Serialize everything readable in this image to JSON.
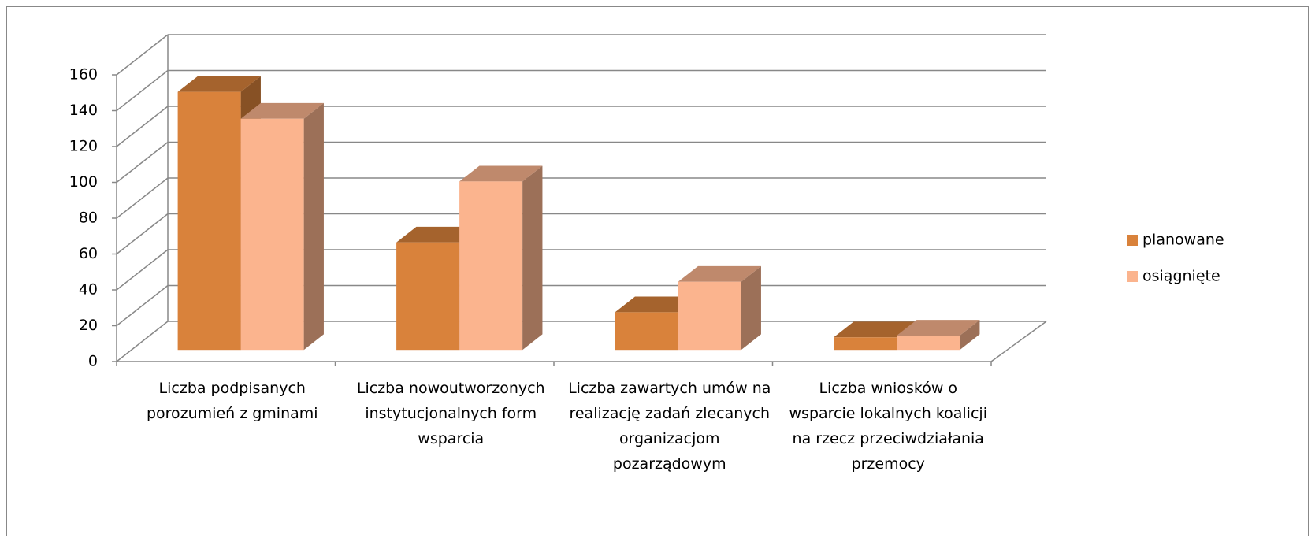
{
  "chart_data": {
    "type": "bar3d",
    "categories": [
      "Liczba podpisanych porozumień z gminami",
      "Liczba nowoutworzonych instytucjonalnych form wsparcia",
      "Liczba zawartych umów na realizację zadań zlecanych organizacjom pozarządowym",
      "Liczba wniosków o wsparcie lokalnych koalicji na rzecz przeciwdziałania przemocy"
    ],
    "series": [
      {
        "name": "planowane",
        "color": "#d9823b",
        "values": [
          144,
          60,
          21,
          7
        ]
      },
      {
        "name": "osiągnięte",
        "color": "#fbb48e",
        "values": [
          129,
          94,
          38,
          8
        ]
      }
    ],
    "ylim": [
      0,
      160
    ],
    "yticks": [
      0,
      20,
      40,
      60,
      80,
      100,
      120,
      140,
      160
    ],
    "grid": true,
    "legend": "right"
  }
}
